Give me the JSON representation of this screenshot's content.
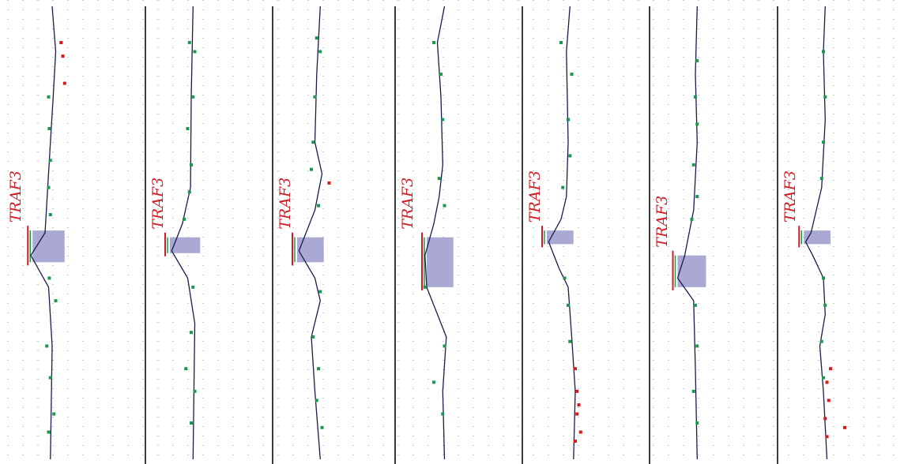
{
  "gene_label": "TRAF3",
  "colors": {
    "line": "#1b1b4d",
    "gain_point": "#1a9850",
    "loss_point": "#d7191c",
    "highlight": "#8c8cc4",
    "label": "#d01c24",
    "divider": "#3a3a3a",
    "grid": "#999999"
  },
  "chart_data": {
    "type": "line",
    "description_axes": "vertical profile tracks; y = genomic position order (0 top to 1 bottom); x = relative copy-number offset within track",
    "panels": [
      {
        "label": "TRAF3",
        "line": [
          [
            0.0,
            0
          ],
          [
            0.1,
            0.1
          ],
          [
            0.03,
            0.2
          ],
          [
            -0.05,
            0.3
          ],
          [
            -0.2,
            0.5
          ],
          [
            -0.6,
            0.55
          ],
          [
            -0.1,
            0.62
          ],
          [
            0.0,
            0.75
          ],
          [
            -0.05,
            1.0
          ]
        ],
        "highlight": {
          "y0": 0.495,
          "y1": 0.565,
          "x0": -0.55,
          "x1": 0.35
        },
        "points_green": [
          [
            -0.1,
            0.2
          ],
          [
            -0.08,
            0.27
          ],
          [
            -0.05,
            0.34
          ],
          [
            -0.1,
            0.4
          ],
          [
            -0.05,
            0.46
          ],
          [
            -0.08,
            0.6
          ],
          [
            0.1,
            0.65
          ],
          [
            -0.15,
            0.75
          ],
          [
            -0.05,
            0.82
          ],
          [
            0.05,
            0.9
          ],
          [
            -0.1,
            0.94
          ]
        ],
        "points_red": [
          [
            0.25,
            0.08
          ],
          [
            0.3,
            0.11
          ],
          [
            0.35,
            0.17
          ]
        ]
      },
      {
        "label": "TRAF3",
        "line": [
          [
            0.05,
            0
          ],
          [
            0.0,
            0.2
          ],
          [
            -0.02,
            0.4
          ],
          [
            -0.25,
            0.48
          ],
          [
            -0.55,
            0.54
          ],
          [
            -0.1,
            0.6
          ],
          [
            0.1,
            0.7
          ],
          [
            0.05,
            1.0
          ]
        ],
        "highlight": {
          "y0": 0.51,
          "y1": 0.545,
          "x0": -0.6,
          "x1": 0.25
        },
        "points_green": [
          [
            -0.05,
            0.08
          ],
          [
            0.1,
            0.1
          ],
          [
            0.05,
            0.2
          ],
          [
            -0.1,
            0.27
          ],
          [
            0.0,
            0.35
          ],
          [
            -0.05,
            0.41
          ],
          [
            -0.2,
            0.47
          ],
          [
            0.05,
            0.62
          ],
          [
            0.0,
            0.72
          ],
          [
            -0.15,
            0.8
          ],
          [
            0.1,
            0.85
          ],
          [
            0.0,
            0.92
          ]
        ],
        "points_red": []
      },
      {
        "label": "TRAF3",
        "line": [
          [
            0.05,
            0
          ],
          [
            -0.05,
            0.15
          ],
          [
            -0.1,
            0.3
          ],
          [
            0.1,
            0.37
          ],
          [
            -0.1,
            0.45
          ],
          [
            -0.55,
            0.54
          ],
          [
            -0.1,
            0.6
          ],
          [
            0.05,
            0.65
          ],
          [
            -0.2,
            0.73
          ],
          [
            -0.1,
            0.85
          ],
          [
            0.05,
            1.0
          ]
        ],
        "highlight": {
          "y0": 0.51,
          "y1": 0.565,
          "x0": -0.6,
          "x1": 0.15
        },
        "points_green": [
          [
            -0.05,
            0.07
          ],
          [
            0.05,
            0.1
          ],
          [
            -0.1,
            0.2
          ],
          [
            -0.15,
            0.3
          ],
          [
            -0.2,
            0.36
          ],
          [
            0.0,
            0.44
          ],
          [
            0.05,
            0.63
          ],
          [
            -0.15,
            0.73
          ],
          [
            0.0,
            0.8
          ],
          [
            -0.05,
            0.87
          ],
          [
            0.1,
            0.93
          ]
        ],
        "points_red": [
          [
            0.3,
            0.39
          ]
        ]
      },
      {
        "label": "TRAF3",
        "line": [
          [
            0.1,
            0
          ],
          [
            -0.1,
            0.08
          ],
          [
            0.0,
            0.2
          ],
          [
            0.05,
            0.35
          ],
          [
            -0.05,
            0.42
          ],
          [
            -0.2,
            0.48
          ],
          [
            -0.45,
            0.55
          ],
          [
            -0.4,
            0.62
          ],
          [
            0.15,
            0.73
          ],
          [
            0.05,
            0.85
          ],
          [
            0.1,
            1.0
          ]
        ],
        "highlight": {
          "y0": 0.51,
          "y1": 0.62,
          "x0": -0.4,
          "x1": 0.35
        },
        "points_green": [
          [
            -0.2,
            0.08
          ],
          [
            0.0,
            0.15
          ],
          [
            0.05,
            0.25
          ],
          [
            -0.05,
            0.38
          ],
          [
            0.1,
            0.44
          ],
          [
            -0.45,
            0.62
          ],
          [
            0.1,
            0.75
          ],
          [
            -0.2,
            0.83
          ],
          [
            0.05,
            0.9
          ]
        ],
        "points_red": []
      },
      {
        "label": "TRAF3",
        "line": [
          [
            0.05,
            0
          ],
          [
            -0.05,
            0.1
          ],
          [
            0.0,
            0.3
          ],
          [
            -0.05,
            0.42
          ],
          [
            -0.2,
            0.47
          ],
          [
            -0.55,
            0.52
          ],
          [
            -0.25,
            0.58
          ],
          [
            0.0,
            0.62
          ],
          [
            0.1,
            0.73
          ],
          [
            0.2,
            0.85
          ],
          [
            0.15,
            1.0
          ]
        ],
        "highlight": {
          "y0": 0.495,
          "y1": 0.525,
          "x0": -0.6,
          "x1": 0.15
        },
        "points_green": [
          [
            -0.2,
            0.08
          ],
          [
            0.1,
            0.15
          ],
          [
            0.0,
            0.25
          ],
          [
            0.05,
            0.33
          ],
          [
            -0.15,
            0.4
          ],
          [
            -0.1,
            0.6
          ],
          [
            0.0,
            0.66
          ],
          [
            0.05,
            0.74
          ]
        ],
        "points_red": [
          [
            0.2,
            0.8
          ],
          [
            0.25,
            0.85
          ],
          [
            0.3,
            0.88
          ],
          [
            0.25,
            0.9
          ],
          [
            0.35,
            0.94
          ],
          [
            0.2,
            0.96
          ]
        ]
      },
      {
        "label": "TRAF3",
        "line": [
          [
            0.05,
            0
          ],
          [
            0.0,
            0.15
          ],
          [
            0.05,
            0.3
          ],
          [
            -0.05,
            0.45
          ],
          [
            -0.3,
            0.55
          ],
          [
            -0.5,
            0.6
          ],
          [
            -0.05,
            0.65
          ],
          [
            0.0,
            0.8
          ],
          [
            0.05,
            1.0
          ]
        ],
        "highlight": {
          "y0": 0.55,
          "y1": 0.62,
          "x0": -0.5,
          "x1": 0.3
        },
        "points_green": [
          [
            0.05,
            0.12
          ],
          [
            0.0,
            0.2
          ],
          [
            0.05,
            0.26
          ],
          [
            -0.05,
            0.35
          ],
          [
            0.05,
            0.42
          ],
          [
            -0.1,
            0.47
          ],
          [
            0.0,
            0.66
          ],
          [
            0.05,
            0.75
          ],
          [
            -0.05,
            0.85
          ],
          [
            0.05,
            0.92
          ]
        ],
        "points_red": []
      },
      {
        "label": "TRAF3",
        "line": [
          [
            0.05,
            0
          ],
          [
            0.0,
            0.1
          ],
          [
            0.05,
            0.25
          ],
          [
            -0.05,
            0.4
          ],
          [
            -0.35,
            0.5
          ],
          [
            -0.5,
            0.52
          ],
          [
            -0.3,
            0.55
          ],
          [
            0.0,
            0.6
          ],
          [
            0.05,
            0.68
          ],
          [
            -0.1,
            0.75
          ],
          [
            0.0,
            0.85
          ],
          [
            0.1,
            1.0
          ]
        ],
        "highlight": {
          "y0": 0.495,
          "y1": 0.525,
          "x0": -0.55,
          "x1": 0.2
        },
        "points_green": [
          [
            0.0,
            0.1
          ],
          [
            0.05,
            0.2
          ],
          [
            0.0,
            0.3
          ],
          [
            -0.05,
            0.38
          ],
          [
            0.0,
            0.6
          ],
          [
            0.05,
            0.66
          ],
          [
            -0.05,
            0.74
          ],
          [
            0.0,
            0.82
          ]
        ],
        "points_red": [
          [
            0.2,
            0.8
          ],
          [
            0.1,
            0.83
          ],
          [
            0.15,
            0.87
          ],
          [
            0.05,
            0.91
          ],
          [
            0.6,
            0.93
          ],
          [
            0.1,
            0.95
          ]
        ]
      }
    ]
  }
}
